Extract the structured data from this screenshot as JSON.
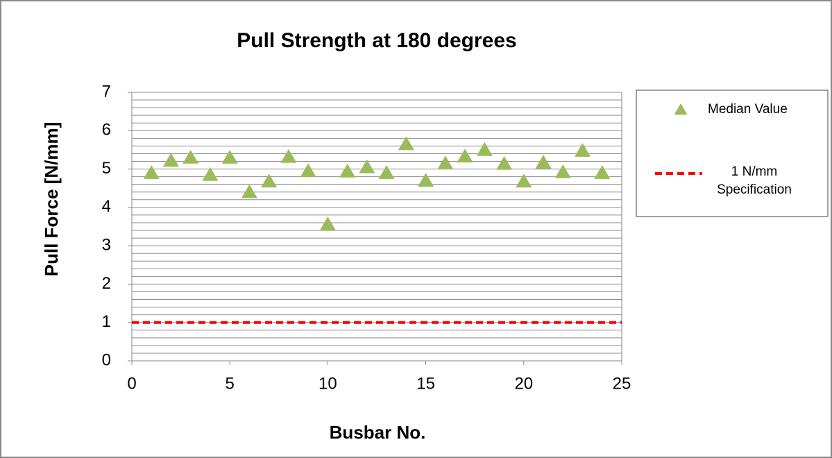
{
  "chart_data": {
    "type": "scatter",
    "title": "Pull Strength at 180 degrees",
    "x_label": "Busbar No.",
    "y_label": "Pull Force [N/mm]",
    "x": [
      1,
      2,
      3,
      4,
      5,
      6,
      7,
      8,
      9,
      10,
      11,
      12,
      13,
      14,
      15,
      16,
      17,
      18,
      19,
      20,
      21,
      22,
      23,
      24
    ],
    "series": [
      {
        "name": "Median Value",
        "color": "#9bbb59",
        "marker": "triangle",
        "values": [
          4.9,
          5.22,
          5.3,
          4.85,
          5.3,
          4.4,
          4.68,
          5.32,
          4.95,
          3.56,
          4.94,
          5.05,
          4.9,
          5.65,
          4.7,
          5.15,
          5.33,
          5.5,
          5.14,
          4.68,
          5.17,
          4.92,
          5.48,
          4.9
        ]
      }
    ],
    "reference_lines": [
      {
        "name": "1 N/mm Specification",
        "color": "#ff0000",
        "value": 1,
        "style": "dashed"
      }
    ],
    "xlim": [
      0,
      25
    ],
    "xticks": [
      0,
      5,
      10,
      15,
      20,
      25
    ],
    "ylim": [
      0,
      7
    ],
    "yticks": [
      0,
      1,
      2,
      3,
      4,
      5,
      6,
      7
    ],
    "ygrid": [
      0.2,
      0.4,
      0.6,
      0.8,
      1,
      1.2,
      1.4,
      1.6,
      1.8,
      2,
      2.2,
      2.4,
      2.6,
      2.8,
      3,
      3.2,
      3.4,
      3.6,
      3.8,
      4,
      4.2,
      4.4,
      4.6,
      4.8,
      5,
      5.2,
      5.4,
      5.6,
      5.8,
      6,
      6.2,
      6.4,
      6.6,
      6.8,
      7
    ],
    "grid": true,
    "legend": "right"
  }
}
